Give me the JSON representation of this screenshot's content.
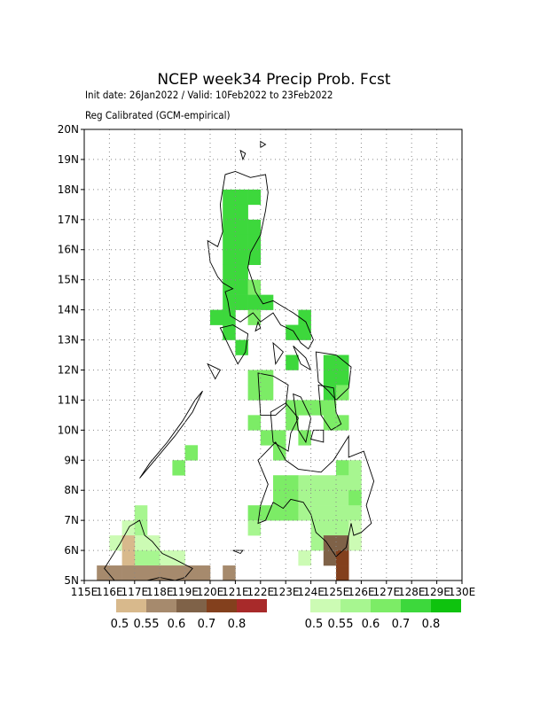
{
  "title": "NCEP week34 Precip Prob. Fcst",
  "subtitle": "Init date: 26Jan2022 / Valid: 10Feb2022 to 23Feb2022",
  "calibration": "Reg Calibrated (GCM-empirical)",
  "map": {
    "lon_range": [
      115,
      130
    ],
    "lat_range": [
      5,
      20
    ],
    "lat_ticks": [
      {
        "v": 20,
        "label": "20N"
      },
      {
        "v": 19,
        "label": "19N"
      },
      {
        "v": 18,
        "label": "18N"
      },
      {
        "v": 17,
        "label": "17N"
      },
      {
        "v": 16,
        "label": "16N"
      },
      {
        "v": 15,
        "label": "15N"
      },
      {
        "v": 14,
        "label": "14N"
      },
      {
        "v": 13,
        "label": "13N"
      },
      {
        "v": 12,
        "label": "12N"
      },
      {
        "v": 11,
        "label": "11N"
      },
      {
        "v": 10,
        "label": "10N"
      },
      {
        "v": 9,
        "label": "9N"
      },
      {
        "v": 8,
        "label": "8N"
      },
      {
        "v": 7,
        "label": "7N"
      },
      {
        "v": 6,
        "label": "6N"
      },
      {
        "v": 5,
        "label": "5N"
      }
    ],
    "lon_ticks": [
      {
        "v": 115,
        "label": "115E"
      },
      {
        "v": 116,
        "label": "116E"
      },
      {
        "v": 117,
        "label": "117E"
      },
      {
        "v": 118,
        "label": "118E"
      },
      {
        "v": 119,
        "label": "119E"
      },
      {
        "v": 120,
        "label": "120E"
      },
      {
        "v": 121,
        "label": "121E"
      },
      {
        "v": 122,
        "label": "122E"
      },
      {
        "v": 123,
        "label": "123E"
      },
      {
        "v": 124,
        "label": "124E"
      },
      {
        "v": 125,
        "label": "125E"
      },
      {
        "v": 126,
        "label": "126E"
      },
      {
        "v": 127,
        "label": "127E"
      },
      {
        "v": 128,
        "label": "128E"
      },
      {
        "v": 129,
        "label": "129E"
      },
      {
        "v": 130,
        "label": "130E"
      }
    ],
    "grid": true
  },
  "colors": {
    "dry": [
      "#d8b98c",
      "#a68a6d",
      "#7f6248",
      "#83401d",
      "#a82a2a"
    ],
    "wet": [
      "#ccfbb4",
      "#a7f690",
      "#7cec66",
      "#3dd83c",
      "#0ec30e"
    ]
  },
  "legend": {
    "dry_labels": [
      "0.5",
      "0.55",
      "0.6",
      "0.7",
      "0.8"
    ],
    "wet_labels": [
      "0.5",
      "0.55",
      "0.6",
      "0.7",
      "0.8"
    ]
  },
  "cell_size_deg": 0.5,
  "cells": [
    {
      "lon": 120.5,
      "lat": 17.5,
      "w": 4
    },
    {
      "lon": 121.0,
      "lat": 17.5,
      "w": 4
    },
    {
      "lon": 121.5,
      "lat": 17.5,
      "w": 4
    },
    {
      "lon": 120.5,
      "lat": 17.0,
      "w": 4
    },
    {
      "lon": 121.0,
      "lat": 17.0,
      "w": 4
    },
    {
      "lon": 120.5,
      "lat": 16.5,
      "w": 4
    },
    {
      "lon": 121.0,
      "lat": 16.5,
      "w": 4
    },
    {
      "lon": 121.5,
      "lat": 16.5,
      "w": 4
    },
    {
      "lon": 120.5,
      "lat": 16.0,
      "w": 4
    },
    {
      "lon": 121.0,
      "lat": 16.0,
      "w": 4
    },
    {
      "lon": 121.5,
      "lat": 16.0,
      "w": 4
    },
    {
      "lon": 120.5,
      "lat": 15.5,
      "w": 4
    },
    {
      "lon": 121.0,
      "lat": 15.5,
      "w": 4
    },
    {
      "lon": 121.5,
      "lat": 15.5,
      "w": 4
    },
    {
      "lon": 120.5,
      "lat": 15.0,
      "w": 4
    },
    {
      "lon": 121.0,
      "lat": 15.0,
      "w": 4
    },
    {
      "lon": 120.5,
      "lat": 14.5,
      "w": 4
    },
    {
      "lon": 121.0,
      "lat": 14.5,
      "w": 4
    },
    {
      "lon": 121.5,
      "lat": 14.5,
      "w": 3
    },
    {
      "lon": 120.5,
      "lat": 14.0,
      "w": 4
    },
    {
      "lon": 121.0,
      "lat": 14.0,
      "w": 4
    },
    {
      "lon": 121.5,
      "lat": 14.0,
      "w": 4
    },
    {
      "lon": 122.0,
      "lat": 14.0,
      "w": 4
    },
    {
      "lon": 120.0,
      "lat": 13.5,
      "w": 4
    },
    {
      "lon": 120.5,
      "lat": 13.5,
      "w": 4
    },
    {
      "lon": 121.5,
      "lat": 13.5,
      "w": 3
    },
    {
      "lon": 123.5,
      "lat": 13.5,
      "w": 4
    },
    {
      "lon": 123.0,
      "lat": 13.0,
      "w": 4
    },
    {
      "lon": 123.5,
      "lat": 13.0,
      "w": 4
    },
    {
      "lon": 120.5,
      "lat": 13.0,
      "w": 4
    },
    {
      "lon": 121.0,
      "lat": 12.5,
      "w": 4
    },
    {
      "lon": 123.0,
      "lat": 12.0,
      "w": 4
    },
    {
      "lon": 124.5,
      "lat": 12.0,
      "w": 4
    },
    {
      "lon": 125.0,
      "lat": 12.0,
      "w": 4
    },
    {
      "lon": 121.5,
      "lat": 11.5,
      "w": 3
    },
    {
      "lon": 122.0,
      "lat": 11.5,
      "w": 3
    },
    {
      "lon": 124.5,
      "lat": 11.5,
      "w": 4
    },
    {
      "lon": 125.0,
      "lat": 11.5,
      "w": 4
    },
    {
      "lon": 121.5,
      "lat": 11.0,
      "w": 3
    },
    {
      "lon": 122.0,
      "lat": 11.0,
      "w": 3
    },
    {
      "lon": 124.5,
      "lat": 11.0,
      "w": 4
    },
    {
      "lon": 125.0,
      "lat": 11.0,
      "w": 3
    },
    {
      "lon": 123.5,
      "lat": 10.5,
      "w": 3
    },
    {
      "lon": 124.0,
      "lat": 10.5,
      "w": 3
    },
    {
      "lon": 124.5,
      "lat": 10.5,
      "w": 3
    },
    {
      "lon": 123.0,
      "lat": 10.5,
      "w": 3
    },
    {
      "lon": 121.5,
      "lat": 10.0,
      "w": 3
    },
    {
      "lon": 123.0,
      "lat": 10.0,
      "w": 3
    },
    {
      "lon": 124.5,
      "lat": 10.0,
      "w": 3
    },
    {
      "lon": 125.0,
      "lat": 10.0,
      "w": 3
    },
    {
      "lon": 122.0,
      "lat": 9.5,
      "w": 3
    },
    {
      "lon": 122.5,
      "lat": 9.5,
      "w": 3
    },
    {
      "lon": 123.5,
      "lat": 9.5,
      "w": 3
    },
    {
      "lon": 122.5,
      "lat": 9.0,
      "w": 3
    },
    {
      "lon": 119.0,
      "lat": 9.0,
      "w": 3
    },
    {
      "lon": 118.5,
      "lat": 8.5,
      "w": 3
    },
    {
      "lon": 125.0,
      "lat": 8.5,
      "w": 3
    },
    {
      "lon": 125.5,
      "lat": 8.5,
      "w": 2
    },
    {
      "lon": 122.5,
      "lat": 8.0,
      "w": 3
    },
    {
      "lon": 123.0,
      "lat": 8.0,
      "w": 3
    },
    {
      "lon": 123.5,
      "lat": 8.0,
      "w": 2
    },
    {
      "lon": 124.0,
      "lat": 8.0,
      "w": 2
    },
    {
      "lon": 124.5,
      "lat": 8.0,
      "w": 2
    },
    {
      "lon": 125.0,
      "lat": 8.0,
      "w": 2
    },
    {
      "lon": 125.5,
      "lat": 8.0,
      "w": 2
    },
    {
      "lon": 122.5,
      "lat": 7.5,
      "w": 3
    },
    {
      "lon": 123.0,
      "lat": 7.5,
      "w": 3
    },
    {
      "lon": 123.5,
      "lat": 7.5,
      "w": 2
    },
    {
      "lon": 124.0,
      "lat": 7.5,
      "w": 2
    },
    {
      "lon": 124.5,
      "lat": 7.5,
      "w": 2
    },
    {
      "lon": 125.0,
      "lat": 7.5,
      "w": 2
    },
    {
      "lon": 125.5,
      "lat": 7.5,
      "w": 3
    },
    {
      "lon": 121.5,
      "lat": 7.0,
      "w": 3
    },
    {
      "lon": 122.0,
      "lat": 7.0,
      "w": 3
    },
    {
      "lon": 122.5,
      "lat": 7.0,
      "w": 3
    },
    {
      "lon": 123.0,
      "lat": 7.0,
      "w": 3
    },
    {
      "lon": 123.5,
      "lat": 7.0,
      "w": 2
    },
    {
      "lon": 124.0,
      "lat": 7.0,
      "w": 2
    },
    {
      "lon": 124.5,
      "lat": 7.0,
      "w": 2
    },
    {
      "lon": 125.0,
      "lat": 7.0,
      "w": 2
    },
    {
      "lon": 125.5,
      "lat": 7.0,
      "w": 2
    },
    {
      "lon": 121.5,
      "lat": 6.5,
      "w": 2
    },
    {
      "lon": 124.0,
      "lat": 6.5,
      "w": 2
    },
    {
      "lon": 124.5,
      "lat": 6.5,
      "w": 2
    },
    {
      "lon": 125.0,
      "lat": 6.5,
      "w": 2
    },
    {
      "lon": 125.5,
      "lat": 6.5,
      "w": 1
    },
    {
      "lon": 124.0,
      "lat": 6.0,
      "w": 2
    },
    {
      "lon": 125.5,
      "lat": 6.0,
      "w": 1
    },
    {
      "lon": 123.5,
      "lat": 5.5,
      "w": 1
    },
    {
      "lon": 117.0,
      "lat": 7.0,
      "w": 2
    },
    {
      "lon": 116.5,
      "lat": 6.5,
      "w": 1
    },
    {
      "lon": 117.0,
      "lat": 6.5,
      "w": 2
    },
    {
      "lon": 116.0,
      "lat": 6.0,
      "w": 1
    },
    {
      "lon": 117.0,
      "lat": 6.0,
      "w": 1
    },
    {
      "lon": 117.0,
      "lat": 5.5,
      "w": 2
    },
    {
      "lon": 117.5,
      "lat": 5.5,
      "w": 2
    },
    {
      "lon": 118.0,
      "lat": 5.5,
      "w": 1
    },
    {
      "lon": 117.5,
      "lat": 6.0,
      "w": 1
    },
    {
      "lon": 118.5,
      "lat": 5.5,
      "w": 1
    },
    {
      "lon": 124.5,
      "lat": 6.0,
      "d": 3
    },
    {
      "lon": 125.0,
      "lat": 6.0,
      "d": 3
    },
    {
      "lon": 124.5,
      "lat": 5.5,
      "d": 3
    },
    {
      "lon": 125.0,
      "lat": 5.5,
      "d": 4
    },
    {
      "lon": 125.0,
      "lat": 5.0,
      "d": 4
    },
    {
      "lon": 116.5,
      "lat": 6.0,
      "d": 1
    },
    {
      "lon": 116.5,
      "lat": 5.5,
      "d": 1
    },
    {
      "lon": 115.5,
      "lat": 5.0,
      "d": 2
    },
    {
      "lon": 116.0,
      "lat": 5.0,
      "d": 2
    },
    {
      "lon": 116.5,
      "lat": 5.0,
      "d": 2
    },
    {
      "lon": 117.0,
      "lat": 5.0,
      "d": 2
    },
    {
      "lon": 117.5,
      "lat": 5.0,
      "d": 2
    },
    {
      "lon": 118.0,
      "lat": 5.0,
      "d": 2
    },
    {
      "lon": 118.5,
      "lat": 5.0,
      "d": 2
    },
    {
      "lon": 119.0,
      "lat": 5.0,
      "d": 2
    },
    {
      "lon": 119.5,
      "lat": 5.0,
      "d": 2
    },
    {
      "lon": 120.5,
      "lat": 5.0,
      "d": 2
    }
  ],
  "coastlines": [
    [
      [
        120.6,
        18.5
      ],
      [
        121.0,
        18.6
      ],
      [
        121.6,
        18.4
      ],
      [
        122.2,
        18.5
      ],
      [
        122.3,
        17.9
      ],
      [
        122.2,
        17.3
      ],
      [
        122.0,
        16.5
      ],
      [
        121.6,
        15.9
      ],
      [
        121.5,
        15.4
      ],
      [
        121.7,
        14.9
      ],
      [
        121.8,
        14.6
      ],
      [
        122.1,
        14.2
      ],
      [
        122.5,
        14.3
      ],
      [
        122.9,
        14.1
      ],
      [
        123.3,
        13.9
      ],
      [
        123.8,
        13.6
      ],
      [
        124.1,
        13.0
      ],
      [
        123.9,
        12.7
      ],
      [
        123.6,
        12.9
      ],
      [
        123.3,
        13.3
      ],
      [
        122.8,
        13.5
      ],
      [
        122.5,
        13.9
      ],
      [
        122.0,
        13.6
      ],
      [
        121.7,
        13.9
      ],
      [
        121.2,
        13.6
      ],
      [
        120.8,
        13.8
      ],
      [
        120.7,
        14.3
      ],
      [
        120.6,
        14.6
      ],
      [
        120.9,
        14.7
      ],
      [
        120.5,
        14.9
      ],
      [
        120.3,
        15.1
      ],
      [
        120.0,
        15.6
      ],
      [
        119.9,
        16.3
      ],
      [
        120.3,
        16.1
      ],
      [
        120.5,
        16.6
      ],
      [
        120.4,
        17.5
      ],
      [
        120.6,
        18.5
      ]
    ],
    [
      [
        120.4,
        13.4
      ],
      [
        120.9,
        13.5
      ],
      [
        121.5,
        13.2
      ],
      [
        121.4,
        12.6
      ],
      [
        121.1,
        12.2
      ],
      [
        120.8,
        12.7
      ],
      [
        120.4,
        13.4
      ]
    ],
    [
      [
        121.9,
        13.6
      ],
      [
        122.0,
        13.4
      ],
      [
        121.8,
        13.3
      ],
      [
        121.9,
        13.6
      ]
    ],
    [
      [
        122.5,
        12.9
      ],
      [
        122.9,
        12.6
      ],
      [
        122.6,
        12.2
      ],
      [
        122.5,
        12.9
      ]
    ],
    [
      [
        123.3,
        12.8
      ],
      [
        123.8,
        12.4
      ],
      [
        124.0,
        12.0
      ],
      [
        123.6,
        12.2
      ],
      [
        123.3,
        12.8
      ]
    ],
    [
      [
        124.2,
        12.6
      ],
      [
        125.0,
        12.5
      ],
      [
        125.6,
        12.1
      ],
      [
        125.5,
        11.4
      ],
      [
        125.0,
        11.0
      ],
      [
        124.7,
        11.3
      ],
      [
        124.3,
        11.6
      ],
      [
        124.2,
        12.6
      ]
    ],
    [
      [
        124.3,
        11.5
      ],
      [
        124.9,
        11.4
      ],
      [
        125.0,
        10.6
      ],
      [
        125.2,
        10.2
      ],
      [
        124.8,
        10.0
      ],
      [
        124.4,
        10.5
      ],
      [
        124.3,
        11.5
      ]
    ],
    [
      [
        121.9,
        11.9
      ],
      [
        122.5,
        11.8
      ],
      [
        123.1,
        11.5
      ],
      [
        123.0,
        10.8
      ],
      [
        122.6,
        10.5
      ],
      [
        122.0,
        10.5
      ],
      [
        121.9,
        11.9
      ]
    ],
    [
      [
        122.4,
        10.6
      ],
      [
        123.0,
        10.9
      ],
      [
        123.5,
        10.4
      ],
      [
        123.2,
        9.9
      ],
      [
        123.1,
        9.3
      ],
      [
        122.5,
        9.6
      ],
      [
        122.4,
        10.6
      ]
    ],
    [
      [
        123.3,
        11.2
      ],
      [
        123.6,
        11.1
      ],
      [
        124.0,
        10.4
      ],
      [
        123.8,
        9.6
      ],
      [
        123.5,
        10.0
      ],
      [
        123.3,
        11.2
      ]
    ],
    [
      [
        124.1,
        10.0
      ],
      [
        124.5,
        10.0
      ],
      [
        124.5,
        9.6
      ],
      [
        124.0,
        9.7
      ],
      [
        124.1,
        10.0
      ]
    ],
    [
      [
        117.2,
        8.4
      ],
      [
        117.8,
        9.0
      ],
      [
        118.6,
        9.8
      ],
      [
        119.3,
        10.6
      ],
      [
        119.7,
        11.3
      ],
      [
        119.4,
        11.0
      ],
      [
        118.9,
        10.3
      ],
      [
        118.3,
        9.6
      ],
      [
        117.6,
        8.9
      ],
      [
        117.2,
        8.4
      ]
    ],
    [
      [
        119.9,
        12.2
      ],
      [
        120.4,
        12.0
      ],
      [
        120.2,
        11.7
      ],
      [
        119.9,
        12.2
      ]
    ],
    [
      [
        121.9,
        9.0
      ],
      [
        122.6,
        9.6
      ],
      [
        123.0,
        9.0
      ],
      [
        123.5,
        8.7
      ],
      [
        124.4,
        8.6
      ],
      [
        124.9,
        9.0
      ],
      [
        125.5,
        9.8
      ],
      [
        125.5,
        9.1
      ],
      [
        126.1,
        9.3
      ],
      [
        126.5,
        8.3
      ],
      [
        126.2,
        7.5
      ],
      [
        126.4,
        6.9
      ],
      [
        126.0,
        6.6
      ],
      [
        125.7,
        6.5
      ],
      [
        125.6,
        6.9
      ],
      [
        125.4,
        6.1
      ],
      [
        125.0,
        5.8
      ],
      [
        124.6,
        6.3
      ],
      [
        124.2,
        6.6
      ],
      [
        124.0,
        7.2
      ],
      [
        123.7,
        7.6
      ],
      [
        123.2,
        7.7
      ],
      [
        122.9,
        7.4
      ],
      [
        122.5,
        7.6
      ],
      [
        122.2,
        7.0
      ],
      [
        121.9,
        6.9
      ],
      [
        122.0,
        7.5
      ],
      [
        122.3,
        8.2
      ],
      [
        121.9,
        9.0
      ]
    ],
    [
      [
        120.9,
        6.0
      ],
      [
        121.3,
        6.0
      ],
      [
        121.2,
        5.9
      ],
      [
        120.9,
        6.0
      ]
    ],
    [
      [
        115.8,
        5.4
      ],
      [
        116.4,
        6.2
      ],
      [
        116.8,
        6.8
      ],
      [
        117.2,
        7.0
      ],
      [
        117.4,
        6.5
      ],
      [
        117.7,
        6.3
      ],
      [
        118.1,
        5.9
      ],
      [
        118.6,
        5.7
      ],
      [
        119.3,
        5.4
      ],
      [
        119.0,
        5.1
      ],
      [
        118.6,
        5.0
      ],
      [
        118.0,
        5.1
      ],
      [
        117.5,
        5.0
      ],
      [
        116.9,
        5.0
      ],
      [
        116.2,
        5.0
      ],
      [
        115.8,
        5.4
      ]
    ],
    [
      [
        121.2,
        19.3
      ],
      [
        121.4,
        19.2
      ],
      [
        121.3,
        19.0
      ],
      [
        121.2,
        19.3
      ]
    ],
    [
      [
        122.0,
        19.6
      ],
      [
        122.2,
        19.5
      ],
      [
        122.0,
        19.4
      ],
      [
        122.0,
        19.6
      ]
    ]
  ]
}
